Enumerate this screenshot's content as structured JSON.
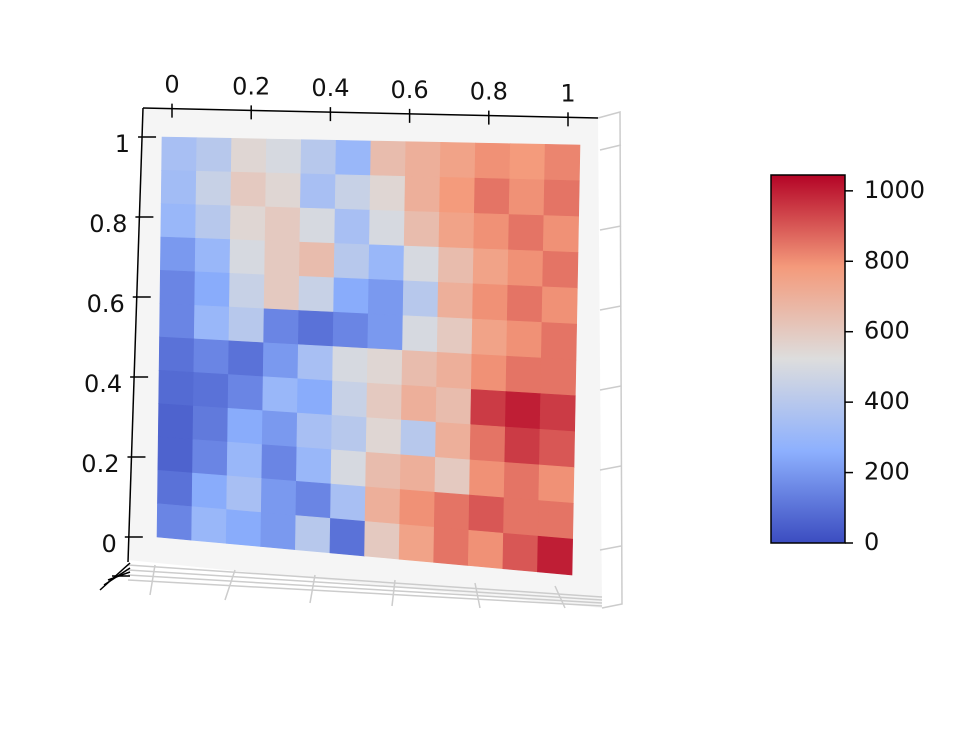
{
  "chart_data": {
    "type": "surface",
    "xticks": [
      0.0,
      0.2,
      0.4,
      0.6,
      0.8,
      1.0
    ],
    "yticks": [
      0.0,
      0.2,
      0.4,
      0.6,
      0.8,
      1.0
    ],
    "xlim": [
      0,
      1
    ],
    "ylim": [
      0,
      1
    ],
    "colormap": [
      "#3b4cc0",
      "#8db0fe",
      "#dddddd",
      "#f49a7b",
      "#b40426"
    ],
    "zlim": [
      0,
      1045
    ],
    "colorbar_ticks": [
      0,
      200,
      400,
      600,
      800,
      1000
    ],
    "z": [
      [
        350,
        400,
        550,
        500,
        400,
        300,
        650,
        700,
        750,
        800,
        780,
        820
      ],
      [
        330,
        450,
        600,
        550,
        350,
        450,
        550,
        700,
        780,
        850,
        800,
        850
      ],
      [
        300,
        400,
        550,
        600,
        500,
        350,
        500,
        650,
        750,
        800,
        850,
        800
      ],
      [
        200,
        300,
        500,
        600,
        650,
        400,
        300,
        500,
        650,
        750,
        800,
        850
      ],
      [
        150,
        250,
        450,
        600,
        450,
        250,
        200,
        400,
        700,
        800,
        850,
        800
      ],
      [
        150,
        300,
        400,
        150,
        100,
        150,
        200,
        500,
        600,
        750,
        800,
        850
      ],
      [
        100,
        150,
        100,
        200,
        350,
        500,
        550,
        650,
        700,
        800,
        850,
        850
      ],
      [
        80,
        100,
        150,
        300,
        250,
        450,
        600,
        700,
        650,
        950,
        1000,
        950
      ],
      [
        60,
        120,
        250,
        200,
        350,
        400,
        550,
        400,
        700,
        850,
        950,
        900
      ],
      [
        60,
        150,
        300,
        150,
        300,
        500,
        650,
        700,
        600,
        800,
        850,
        800
      ],
      [
        100,
        250,
        350,
        200,
        150,
        350,
        700,
        800,
        850,
        900,
        850,
        850
      ],
      [
        150,
        300,
        250,
        200,
        400,
        100,
        600,
        750,
        850,
        800,
        900,
        1000
      ]
    ]
  }
}
